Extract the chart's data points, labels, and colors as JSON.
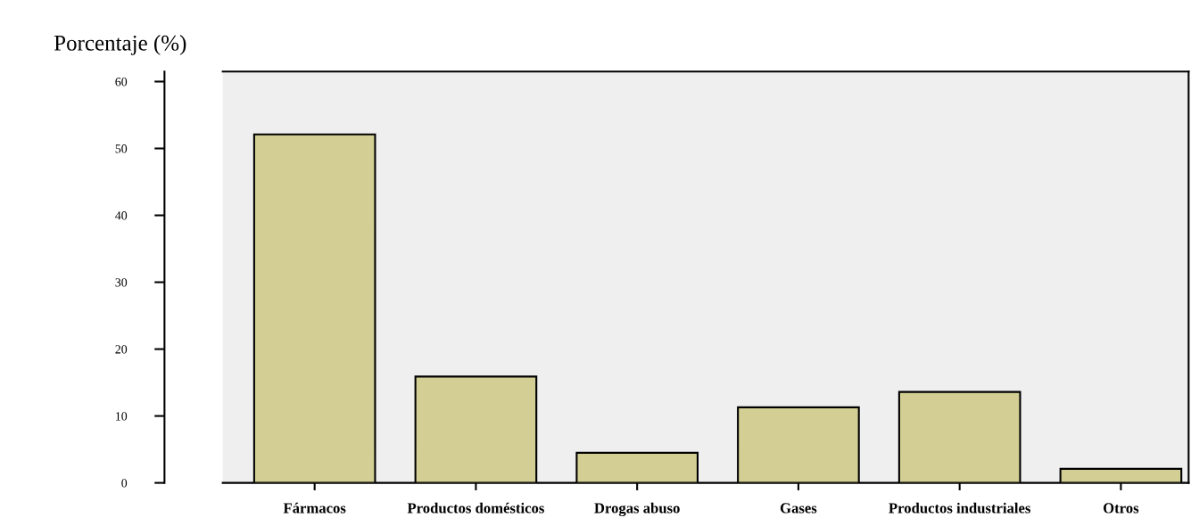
{
  "chart_data": {
    "type": "bar",
    "ylabel": "Porcentaje (%)",
    "categories": [
      "Fármacos",
      "Productos domésticos",
      "Drogas abuso",
      "Gases",
      "Productos industriales",
      "Otros"
    ],
    "values": [
      52.1,
      15.9,
      4.5,
      11.3,
      13.6,
      2.1
    ],
    "color": "#d3cf94",
    "ylim": [
      0,
      61.5
    ],
    "yticks": [
      0,
      10,
      20,
      30,
      40,
      50,
      60
    ],
    "grid": false,
    "legend": false
  }
}
